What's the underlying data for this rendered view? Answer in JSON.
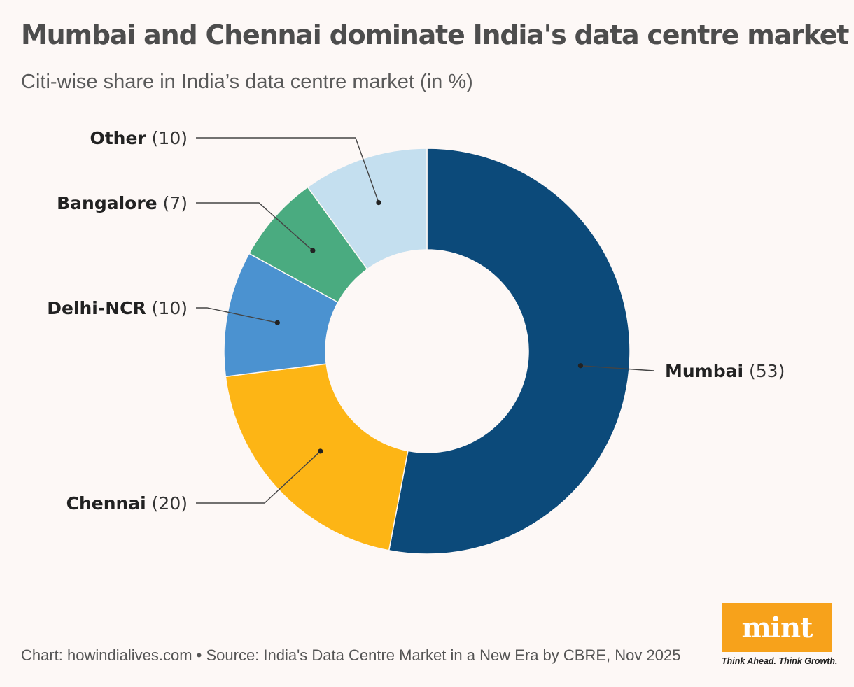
{
  "title": "Mumbai and Chennai dominate India's data centre market",
  "subtitle": "Citi-wise share in India’s data centre market (in %)",
  "footer": "Chart: howindialives.com • Source: India's Data Centre Market in a New Era by CBRE, Nov 2025",
  "logo": {
    "word": "mint",
    "tagline": "Think Ahead. Think Growth.",
    "color": "#f7a21b"
  },
  "chart_data": {
    "type": "pie",
    "style": "donut",
    "labels": [
      "Mumbai",
      "Chennai",
      "Delhi-NCR",
      "Bangalore",
      "Other"
    ],
    "values": [
      53,
      20,
      10,
      7,
      10
    ],
    "value_labels": [
      "(53)",
      "(20)",
      "(10)",
      "(7)",
      "(10)"
    ],
    "colors": [
      "#0c4a7a",
      "#fdb515",
      "#4b92d0",
      "#4aab80",
      "#c4dfef"
    ]
  }
}
